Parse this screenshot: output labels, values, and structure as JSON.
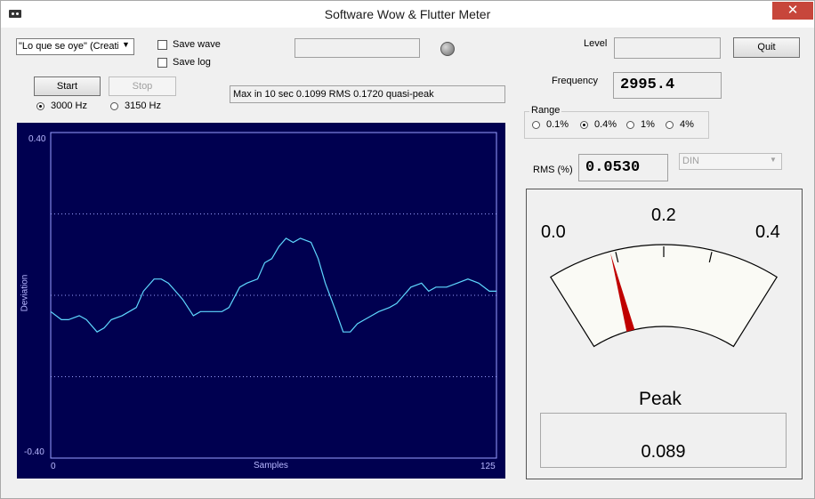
{
  "window": {
    "title": "Software Wow & Flutter Meter",
    "close_glyph": "✕"
  },
  "device": {
    "selected": "\"Lo que se oye\" (Creati"
  },
  "options": {
    "save_wave": "Save wave",
    "save_log": "Save log"
  },
  "buttons": {
    "start": "Start",
    "stop": "Stop",
    "quit": "Quit"
  },
  "frequency_select": {
    "opt1": "3000 Hz",
    "opt2": "3150 Hz",
    "selected": "3000 Hz"
  },
  "status": {
    "text": "Max in 10 sec 0.1099 RMS 0.1720 quasi-peak"
  },
  "level": {
    "label": "Level"
  },
  "frequency": {
    "label": "Frequency",
    "value": "2995.4"
  },
  "range": {
    "label": "Range",
    "options": [
      "0.1%",
      "0.4%",
      "1%",
      "4%"
    ],
    "selected": "0.4%"
  },
  "rms": {
    "label": "RMS (%)",
    "value": "0.0530"
  },
  "weighting": {
    "selected": "DIN"
  },
  "meter": {
    "scale_left": "0.0",
    "scale_mid": "0.2",
    "scale_right": "0.4",
    "max": 0.4,
    "needle_value": 0.089,
    "peak_label": "Peak",
    "peak_value": "0.089",
    "needle_color": "#c00000"
  },
  "plot": {
    "y_top": "0.40",
    "y_bottom": "-0.40",
    "x_start": "0",
    "x_end": "125",
    "xlabel": "Samples",
    "ylabel": "Deviation",
    "background": "#000050",
    "trace_color": "#5fd8ff"
  },
  "chart_data": {
    "type": "line",
    "xlabel": "Samples",
    "ylabel": "Deviation",
    "xlim": [
      0,
      125
    ],
    "ylim": [
      -0.4,
      0.4
    ],
    "grid_y": [
      -0.2,
      0,
      0.2
    ],
    "x": [
      0,
      3,
      5,
      8,
      10,
      13,
      15,
      17,
      20,
      22,
      24,
      26,
      29,
      31,
      33,
      35,
      37,
      40,
      42,
      44,
      46,
      48,
      50,
      53,
      55,
      58,
      60,
      62,
      64,
      66,
      68,
      70,
      73,
      75,
      77,
      80,
      82,
      84,
      86,
      88,
      90,
      92,
      95,
      97,
      99,
      101,
      104,
      106,
      108,
      111,
      114,
      117,
      120,
      123,
      125
    ],
    "y": [
      -0.04,
      -0.06,
      -0.06,
      -0.05,
      -0.06,
      -0.09,
      -0.08,
      -0.06,
      -0.05,
      -0.04,
      -0.03,
      0.01,
      0.04,
      0.04,
      0.03,
      0.01,
      -0.01,
      -0.05,
      -0.04,
      -0.04,
      -0.04,
      -0.04,
      -0.03,
      0.02,
      0.03,
      0.04,
      0.08,
      0.09,
      0.12,
      0.14,
      0.13,
      0.14,
      0.13,
      0.09,
      0.03,
      -0.04,
      -0.09,
      -0.09,
      -0.07,
      -0.06,
      -0.05,
      -0.04,
      -0.03,
      -0.02,
      0.0,
      0.02,
      0.03,
      0.01,
      0.02,
      0.02,
      0.03,
      0.04,
      0.03,
      0.01,
      0.01
    ]
  }
}
